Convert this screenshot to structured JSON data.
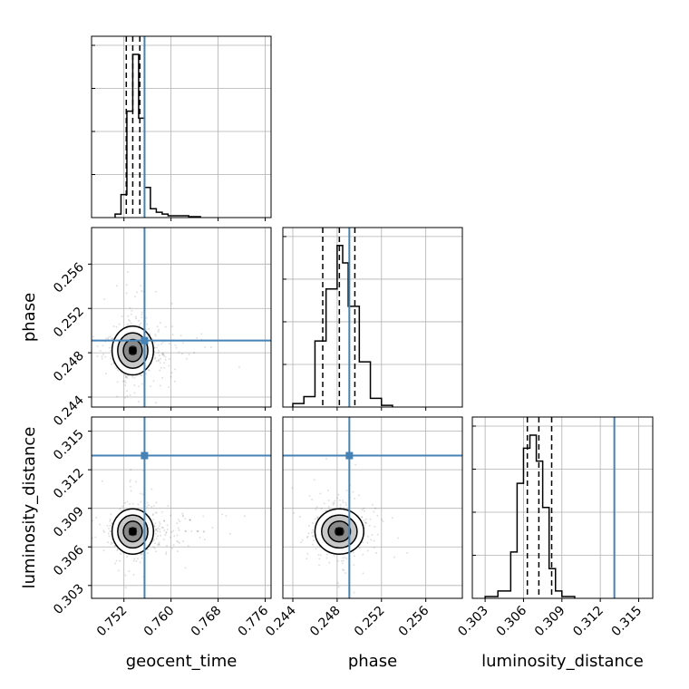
{
  "chart_data": {
    "type": "scatter",
    "kind": "corner",
    "grid": true,
    "colors": {
      "truth": "#4682b4",
      "contours": "#000000",
      "samples": "#000000",
      "grid": "#b0b0b0"
    },
    "parameters": [
      {
        "key": "geocent_time",
        "label": "geocent_time",
        "truth": 0.7555,
        "mean": 0.7535,
        "sd": 0.0016,
        "quantiles": [
          0.7524,
          0.7535,
          0.7547
        ],
        "range": [
          0.7465,
          0.777
        ],
        "ticks": [
          0.752,
          0.76,
          0.768,
          0.776
        ],
        "tick_labels": [
          "0.752",
          "0.760",
          "0.768",
          "0.776"
        ]
      },
      {
        "key": "phase",
        "label": "phase",
        "truth": 0.2491,
        "mean": 0.2482,
        "sd": 0.001,
        "quantiles": [
          0.2467,
          0.2482,
          0.2496
        ],
        "range": [
          0.2431,
          0.2593
        ],
        "ticks": [
          0.244,
          0.248,
          0.252,
          0.256
        ],
        "tick_labels": [
          "0.244",
          "0.248",
          "0.252",
          "0.256"
        ]
      },
      {
        "key": "luminosity_distance",
        "label": "luminosity_distance",
        "truth": 0.3131,
        "mean": 0.3072,
        "sd": 0.0008,
        "quantiles": [
          0.3063,
          0.3072,
          0.3082
        ],
        "range": [
          0.302,
          0.3161
        ],
        "ticks": [
          0.303,
          0.306,
          0.309,
          0.312,
          0.315
        ],
        "tick_labels": [
          "0.303",
          "0.306",
          "0.309",
          "0.312",
          "0.315"
        ]
      }
    ],
    "histograms": [
      {
        "param": "geocent_time",
        "bins": [
          0.7505,
          0.7515,
          0.7525,
          0.7535,
          0.7545,
          0.7555,
          0.7565,
          0.7575,
          0.7585,
          0.7595,
          0.761,
          0.763,
          0.765
        ],
        "counts": [
          0.02,
          0.13,
          0.6,
          0.92,
          0.56,
          0.17,
          0.05,
          0.03,
          0.02,
          0.01,
          0.01,
          0.005
        ]
      },
      {
        "param": "phase",
        "bins": [
          0.244,
          0.245,
          0.246,
          0.247,
          0.248,
          0.2485,
          0.249,
          0.25,
          0.251,
          0.252,
          0.253
        ],
        "counts": [
          0.02,
          0.06,
          0.38,
          0.68,
          0.93,
          0.83,
          0.58,
          0.26,
          0.05,
          0.01
        ]
      },
      {
        "param": "luminosity_distance",
        "bins": [
          0.303,
          0.304,
          0.305,
          0.3055,
          0.306,
          0.3065,
          0.307,
          0.3075,
          0.308,
          0.3085,
          0.309,
          0.31
        ],
        "counts": [
          0.01,
          0.04,
          0.25,
          0.62,
          0.81,
          0.88,
          0.74,
          0.49,
          0.16,
          0.04,
          0.01
        ]
      }
    ],
    "panels": [
      {
        "row": 0,
        "col": 0,
        "kind": "hist"
      },
      {
        "row": 1,
        "col": 0,
        "kind": "2d"
      },
      {
        "row": 1,
        "col": 1,
        "kind": "hist"
      },
      {
        "row": 2,
        "col": 0,
        "kind": "2d"
      },
      {
        "row": 2,
        "col": 1,
        "kind": "2d"
      },
      {
        "row": 2,
        "col": 2,
        "kind": "hist"
      }
    ]
  }
}
